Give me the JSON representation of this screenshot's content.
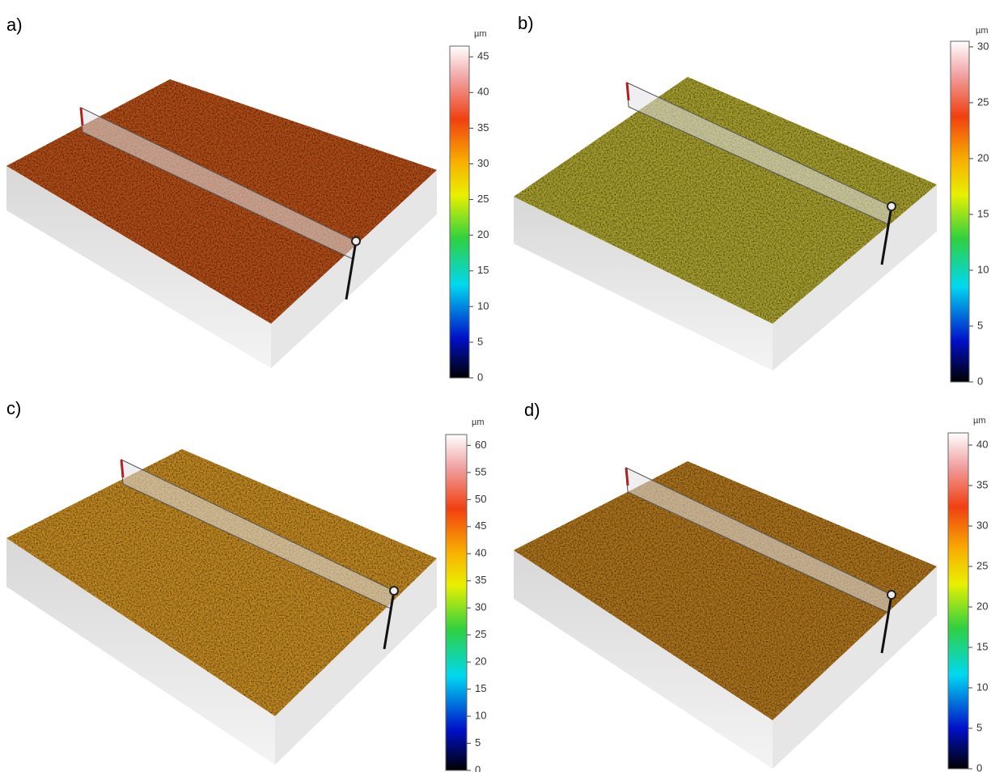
{
  "panels": [
    {
      "label": "a)",
      "unit": "µm",
      "range": [
        0,
        46.5
      ],
      "ticks": [
        0,
        5,
        10,
        15,
        20,
        25,
        30,
        35,
        40,
        45
      ]
    },
    {
      "label": "b)",
      "unit": "µm",
      "range": [
        0,
        30.5
      ],
      "ticks": [
        0,
        5,
        10,
        15,
        20,
        25,
        30
      ]
    },
    {
      "label": "c)",
      "unit": "µm",
      "range": [
        0,
        62
      ],
      "ticks": [
        0,
        5,
        10,
        15,
        20,
        25,
        30,
        35,
        40,
        45,
        50,
        55,
        60
      ]
    },
    {
      "label": "d)",
      "unit": "µm",
      "range": [
        0,
        41.5
      ],
      "ticks": [
        0,
        5,
        10,
        15,
        20,
        25,
        30,
        35,
        40
      ]
    }
  ]
}
